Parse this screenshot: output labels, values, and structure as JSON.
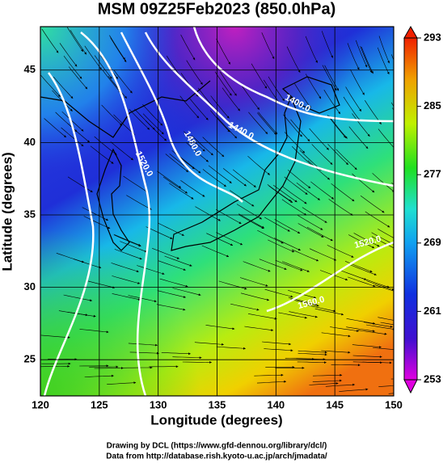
{
  "chart_data": {
    "type": "contour",
    "title": "MSM 09Z25Feb2023 (850.0hPa)",
    "xlabel": "Longitude (degrees)",
    "ylabel": "Latitude  (degrees)",
    "xlim": [
      120,
      150
    ],
    "xticks": [
      120,
      125,
      130,
      135,
      140,
      145,
      150
    ],
    "ylim": [
      22.5,
      48
    ],
    "yticks": [
      25,
      30,
      35,
      40,
      45
    ],
    "colorbar": {
      "lim": [
        253,
        293
      ],
      "ticks": [
        253,
        261,
        269,
        277,
        285,
        293
      ]
    },
    "contour_labels": [
      {
        "value": 1400,
        "label": "1400.0"
      },
      {
        "value": 1440,
        "label": "1440.0"
      },
      {
        "value": 1480,
        "label": "1480.0"
      },
      {
        "value": 1520,
        "label": "1520.0"
      },
      {
        "value": 1520,
        "label": "1520.0"
      },
      {
        "value": 1560,
        "label": "1560.0"
      }
    ],
    "grid": true,
    "footer": [
      "Drawing by DCL (https://www.gfd-dennou.org/library/dcl/)",
      "Data from http://database.rish.kyoto-u.ac.jp/arch/jmadata/"
    ]
  }
}
